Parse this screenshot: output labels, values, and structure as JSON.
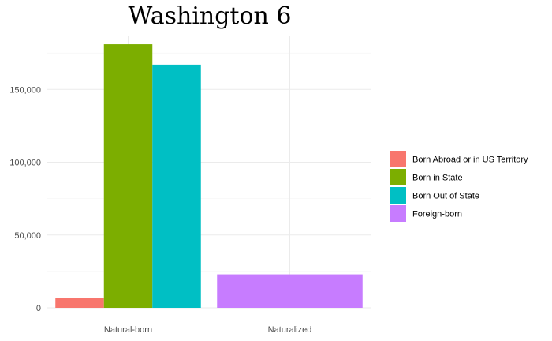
{
  "chart_data": {
    "type": "bar",
    "title": "Washington 6",
    "xlabel": "",
    "ylabel": "",
    "categories": [
      "Natural-born",
      "Naturalized"
    ],
    "series": [
      {
        "name": "Born Abroad or in US Territory",
        "color": "#F8766D",
        "values": [
          7000,
          null
        ]
      },
      {
        "name": "Born in State",
        "color": "#7CAE00",
        "values": [
          181000,
          null
        ]
      },
      {
        "name": "Born Out of State",
        "color": "#00BFC4",
        "values": [
          167000,
          null
        ]
      },
      {
        "name": "Foreign-born",
        "color": "#C77CFF",
        "values": [
          null,
          23000
        ]
      }
    ],
    "ylim": [
      0,
      187000
    ],
    "yticks": [
      0,
      50000,
      100000,
      150000
    ],
    "ytick_labels": [
      "0",
      "50,000",
      "100,000",
      "150,000"
    ],
    "grid": true,
    "legend_position": "right"
  }
}
